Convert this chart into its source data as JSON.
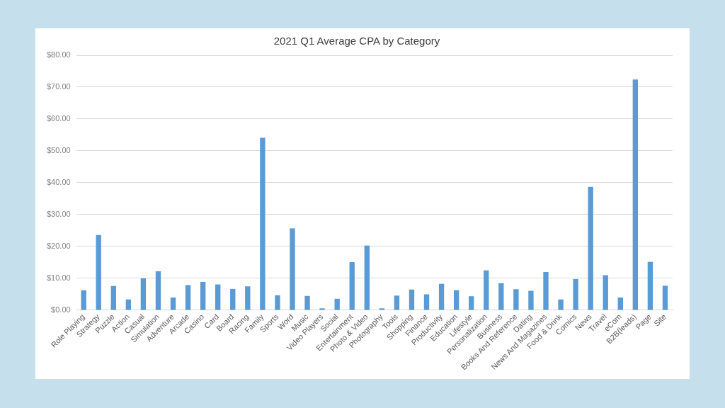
{
  "chart_data": {
    "type": "bar",
    "title": "2021 Q1 Average CPA by Category",
    "categories": [
      "Role Playing",
      "Strategy",
      "Puzzle",
      "Action",
      "Casual",
      "Simulation",
      "Adventure",
      "Arcade",
      "Casino",
      "Card",
      "Board",
      "Racing",
      "Family",
      "Sports",
      "Word",
      "Music",
      "Video Players",
      "Social",
      "Entertainment",
      "Photo & Video",
      "Photography",
      "Tools",
      "Shopping",
      "Finance",
      "Productivity",
      "Education",
      "Lifestyle",
      "Personalization",
      "Business",
      "Books And Reference",
      "Dating",
      "News And Magazines",
      "Food & Drink",
      "Comics",
      "News",
      "Travel",
      "eCom",
      "B2B(leads)",
      "Page",
      "Site"
    ],
    "values": [
      6.3,
      23.6,
      7.6,
      3.4,
      10.0,
      12.2,
      4.0,
      7.9,
      8.9,
      8.1,
      6.7,
      7.5,
      54.1,
      4.7,
      25.7,
      4.5,
      0.6,
      3.6,
      15.1,
      20.3,
      0.6,
      4.6,
      6.5,
      5.0,
      8.3,
      6.3,
      4.4,
      12.5,
      8.5,
      6.6,
      6.1,
      12.0,
      3.4,
      9.8,
      38.7,
      11.0,
      4.0,
      72.4,
      15.2,
      7.7
    ],
    "color": "#5b9bd5",
    "ylim": [
      0,
      80
    ],
    "yticks": [
      {
        "value": 0,
        "label": "$0.00"
      },
      {
        "value": 10,
        "label": "$10.00"
      },
      {
        "value": 20,
        "label": "$20.00"
      },
      {
        "value": 30,
        "label": "$30.00"
      },
      {
        "value": 40,
        "label": "$40.00"
      },
      {
        "value": 50,
        "label": "$50.00"
      },
      {
        "value": 60,
        "label": "$60.00"
      },
      {
        "value": 70,
        "label": "$70.00"
      },
      {
        "value": 80,
        "label": "$80.00"
      }
    ],
    "grid": "y",
    "legend": false
  }
}
